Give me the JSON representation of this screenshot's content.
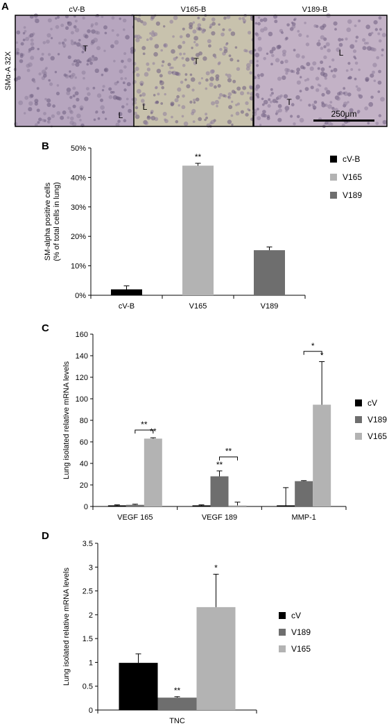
{
  "panel_a": {
    "letter": "A",
    "side_label": "SMα-A 32X",
    "scale_bar": "250μm",
    "images": [
      {
        "title": "cV-B",
        "labels": [
          "T",
          "L"
        ],
        "tissue": "#b7a6bf"
      },
      {
        "title": "V165-B",
        "labels": [
          "T",
          "L"
        ],
        "tissue": "#c8c2ad"
      },
      {
        "title": "V189-B",
        "labels": [
          "L",
          "T"
        ],
        "tissue": "#c3b2c6"
      }
    ]
  },
  "chart_data": [
    {
      "panel": "B",
      "type": "bar",
      "categories": [
        "cV-B",
        "V165",
        "V189"
      ],
      "values": [
        2,
        44,
        15.3
      ],
      "errors": [
        1.2,
        0.8,
        1.1
      ],
      "significance": [
        "",
        "**",
        ""
      ],
      "colors": [
        "#000000",
        "#b3b3b3",
        "#6e6e6e"
      ],
      "legend": [
        "cV-B",
        "V165",
        "V189"
      ],
      "ylabel": "SM-alpha positive cells\n(% of total cells in lung)",
      "ylim": [
        0,
        50
      ],
      "yticks": [
        "0%",
        "10%",
        "20%",
        "30%",
        "40%",
        "50%"
      ],
      "legend_position": "top-right"
    },
    {
      "panel": "C",
      "type": "bar",
      "categories": [
        "VEGF 165",
        "VEGF 189",
        "MMP-1"
      ],
      "series": [
        {
          "name": "cV",
          "color": "#000000",
          "values": [
            1,
            1,
            1
          ],
          "errors": [
            0.5,
            0.5,
            16.5
          ]
        },
        {
          "name": "V189",
          "color": "#6e6e6e",
          "values": [
            1.5,
            28,
            23.5
          ],
          "errors": [
            0.6,
            5,
            0.5
          ]
        },
        {
          "name": "V165",
          "color": "#b3b3b3",
          "values": [
            63,
            1,
            94.5
          ],
          "errors": [
            0.8,
            3,
            40
          ]
        }
      ],
      "bar_significance": [
        {
          "category": 0,
          "series": 2,
          "text": "**"
        },
        {
          "category": 1,
          "series": 1,
          "text": "**"
        },
        {
          "category": 2,
          "series": 2,
          "text": "*"
        }
      ],
      "brackets": [
        {
          "category": 0,
          "from": 1,
          "to": 2,
          "y": 71,
          "text": "**"
        },
        {
          "category": 1,
          "from": 1,
          "to": 2,
          "y": 46,
          "text": "**"
        },
        {
          "category": 2,
          "from": 1,
          "to": 2,
          "y": 144,
          "text": "*"
        }
      ],
      "ylabel": "Lung isolated relative mRNA levels",
      "ylim": [
        0,
        160
      ],
      "yticks": [
        "0",
        "20",
        "40",
        "60",
        "80",
        "100",
        "120",
        "140",
        "160"
      ],
      "legend": [
        "cV",
        "V189",
        "V165"
      ],
      "legend_position": "right"
    },
    {
      "panel": "D",
      "type": "bar",
      "categories": [
        "TNC"
      ],
      "series": [
        {
          "name": "cV",
          "color": "#000000",
          "values": [
            0.99
          ],
          "errors": [
            0.19
          ]
        },
        {
          "name": "V189",
          "color": "#6e6e6e",
          "values": [
            0.26
          ],
          "errors": [
            0.02
          ]
        },
        {
          "name": "V165",
          "color": "#b3b3b3",
          "values": [
            2.16
          ],
          "errors": [
            0.69
          ]
        }
      ],
      "bar_significance": [
        {
          "category": 0,
          "series": 1,
          "text": "**"
        },
        {
          "category": 0,
          "series": 2,
          "text": "*"
        }
      ],
      "ylabel": "Lung isolated relative mRNA levels",
      "ylim": [
        0,
        3.5
      ],
      "yticks": [
        "0",
        "0.5",
        "1",
        "1.5",
        "2",
        "2.5",
        "3",
        "3.5"
      ],
      "legend": [
        "cV",
        "V189",
        "V165"
      ],
      "legend_position": "right"
    }
  ]
}
